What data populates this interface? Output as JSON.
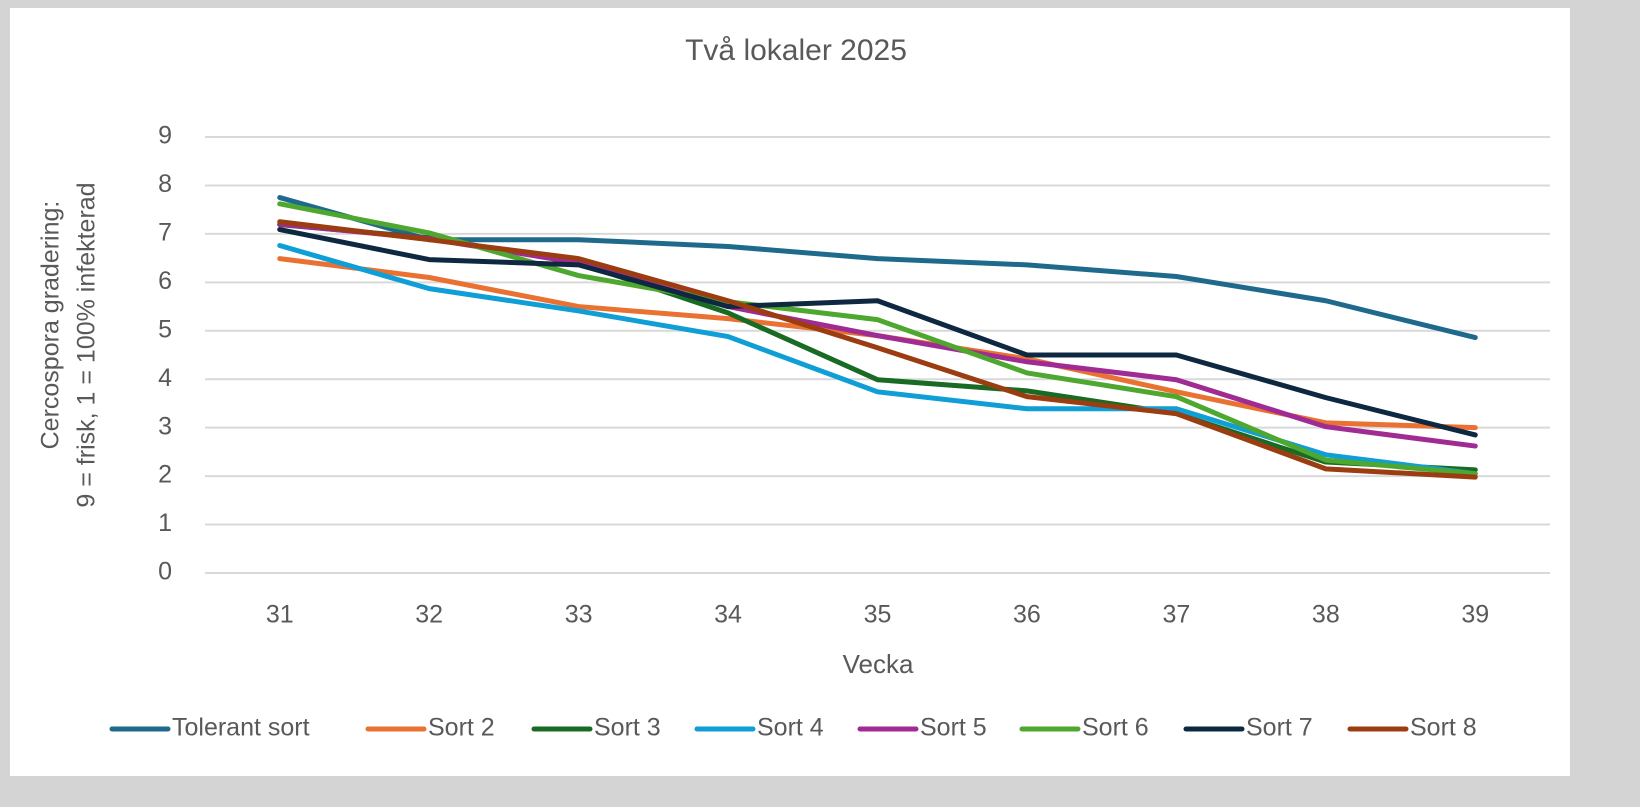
{
  "chart_data": {
    "type": "line",
    "title": "Två lokaler 2025",
    "xlabel": "Vecka",
    "ylabel": [
      "Cercospora gradering:",
      "9 = frisk, 1 = 100% infekterad"
    ],
    "categories": [
      "31",
      "32",
      "33",
      "34",
      "35",
      "36",
      "37",
      "38",
      "39"
    ],
    "ylim": [
      0,
      9
    ],
    "yticks": [
      0,
      1,
      2,
      3,
      4,
      5,
      6,
      7,
      8,
      9
    ],
    "grid": true,
    "legend": "bottom",
    "series": [
      {
        "name": "Tolerant sort",
        "color": "#1f6a8c",
        "values": [
          7.75,
          6.88,
          6.88,
          6.74,
          6.49,
          6.36,
          6.12,
          5.62,
          4.86
        ]
      },
      {
        "name": "Sort 2",
        "color": "#e97132",
        "values": [
          6.49,
          6.1,
          5.5,
          5.25,
          4.9,
          4.42,
          3.74,
          3.1,
          3.0
        ]
      },
      {
        "name": "Sort 3",
        "color": "#196b24",
        "values": [
          7.19,
          6.92,
          6.4,
          5.37,
          3.99,
          3.76,
          3.29,
          2.29,
          2.13
        ]
      },
      {
        "name": "Sort 4",
        "color": "#0f9ed5",
        "values": [
          6.76,
          5.87,
          5.41,
          4.88,
          3.74,
          3.39,
          3.39,
          2.44,
          2.05
        ]
      },
      {
        "name": "Sort 5",
        "color": "#a02b93",
        "values": [
          7.2,
          6.9,
          6.4,
          5.5,
          4.9,
          4.36,
          3.99,
          3.02,
          2.62
        ]
      },
      {
        "name": "Sort 6",
        "color": "#4ea72e",
        "values": [
          7.62,
          7.02,
          6.14,
          5.6,
          5.23,
          4.13,
          3.64,
          2.33,
          2.05
        ]
      },
      {
        "name": "Sort 7",
        "color": "#0e2841",
        "values": [
          7.09,
          6.47,
          6.36,
          5.5,
          5.62,
          4.5,
          4.5,
          3.62,
          2.85
        ]
      },
      {
        "name": "Sort 8",
        "color": "#9b3c11",
        "values": [
          7.25,
          6.88,
          6.49,
          5.62,
          4.65,
          3.64,
          3.29,
          2.15,
          1.98
        ]
      }
    ]
  }
}
